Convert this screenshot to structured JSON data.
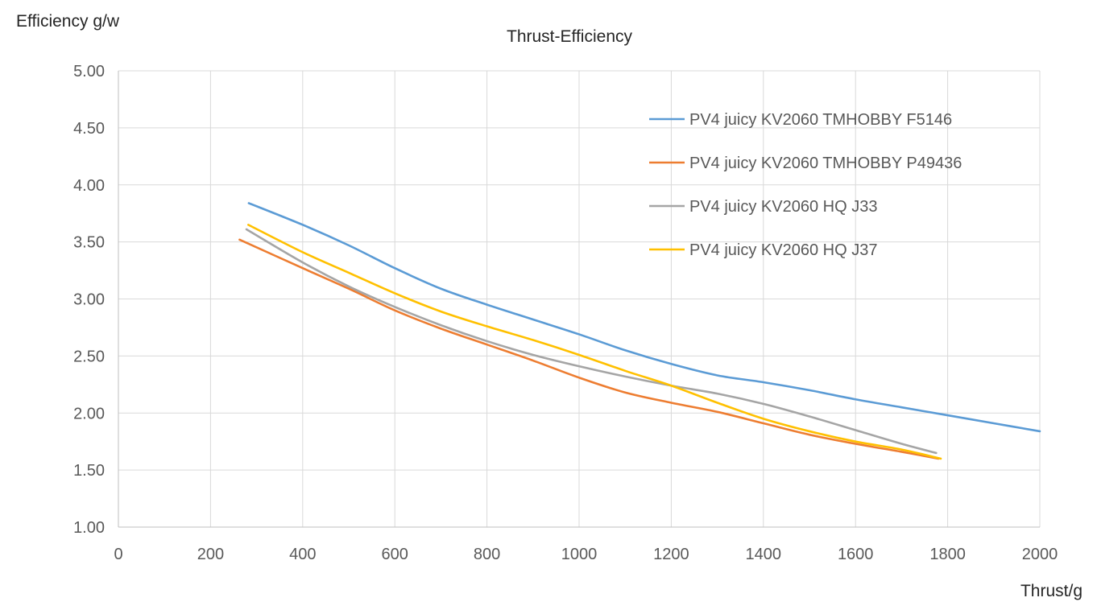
{
  "chart_data": {
    "type": "line",
    "title": "Thrust-Efficiency",
    "xlabel": "Thrust/g",
    "ylabel": "Efficiency g/w",
    "xlim": [
      0,
      2000
    ],
    "ylim": [
      1.0,
      5.0
    ],
    "x_ticks": [
      "0",
      "200",
      "400",
      "600",
      "800",
      "1000",
      "1200",
      "1400",
      "1600",
      "1800",
      "2000"
    ],
    "y_ticks": [
      "5.00",
      "4.50",
      "4.00",
      "3.50",
      "3.00",
      "2.50",
      "2.00",
      "1.50",
      "1.00"
    ],
    "grid": true,
    "legend_position": "top-right",
    "series": [
      {
        "name": "PV4 juicy KV2060 TMHOBBY F5146",
        "color": "#5b9bd5",
        "x": [
          283,
          400,
          500,
          600,
          700,
          800,
          900,
          1000,
          1100,
          1200,
          1300,
          1400,
          1500,
          1600,
          1700,
          1800,
          1900,
          2000
        ],
        "y": [
          3.84,
          3.65,
          3.47,
          3.27,
          3.09,
          2.95,
          2.82,
          2.69,
          2.55,
          2.43,
          2.33,
          2.27,
          2.2,
          2.12,
          2.05,
          1.98,
          1.91,
          1.84
        ]
      },
      {
        "name": "PV4 juicy KV2060 TMHOBBY P49436",
        "color": "#ed7d31",
        "x": [
          263,
          400,
          500,
          600,
          700,
          800,
          900,
          1000,
          1100,
          1200,
          1300,
          1400,
          1500,
          1600,
          1700,
          1780
        ],
        "y": [
          3.52,
          3.27,
          3.09,
          2.9,
          2.74,
          2.6,
          2.46,
          2.31,
          2.18,
          2.09,
          2.01,
          1.91,
          1.81,
          1.73,
          1.66,
          1.6
        ]
      },
      {
        "name": "PV4 juicy KV2060 HQ J33",
        "color": "#a5a5a5",
        "x": [
          278,
          400,
          500,
          600,
          700,
          800,
          900,
          1000,
          1100,
          1200,
          1300,
          1400,
          1500,
          1600,
          1700,
          1775
        ],
        "y": [
          3.61,
          3.32,
          3.11,
          2.93,
          2.77,
          2.63,
          2.51,
          2.41,
          2.32,
          2.24,
          2.17,
          2.08,
          1.97,
          1.85,
          1.73,
          1.65
        ]
      },
      {
        "name": "PV4 juicy KV2060 HQ J37",
        "color": "#ffc000",
        "x": [
          282,
          400,
          500,
          600,
          700,
          800,
          900,
          1000,
          1100,
          1200,
          1300,
          1400,
          1500,
          1600,
          1700,
          1785
        ],
        "y": [
          3.65,
          3.41,
          3.23,
          3.05,
          2.89,
          2.76,
          2.64,
          2.51,
          2.37,
          2.24,
          2.09,
          1.95,
          1.84,
          1.75,
          1.68,
          1.6
        ]
      }
    ]
  }
}
